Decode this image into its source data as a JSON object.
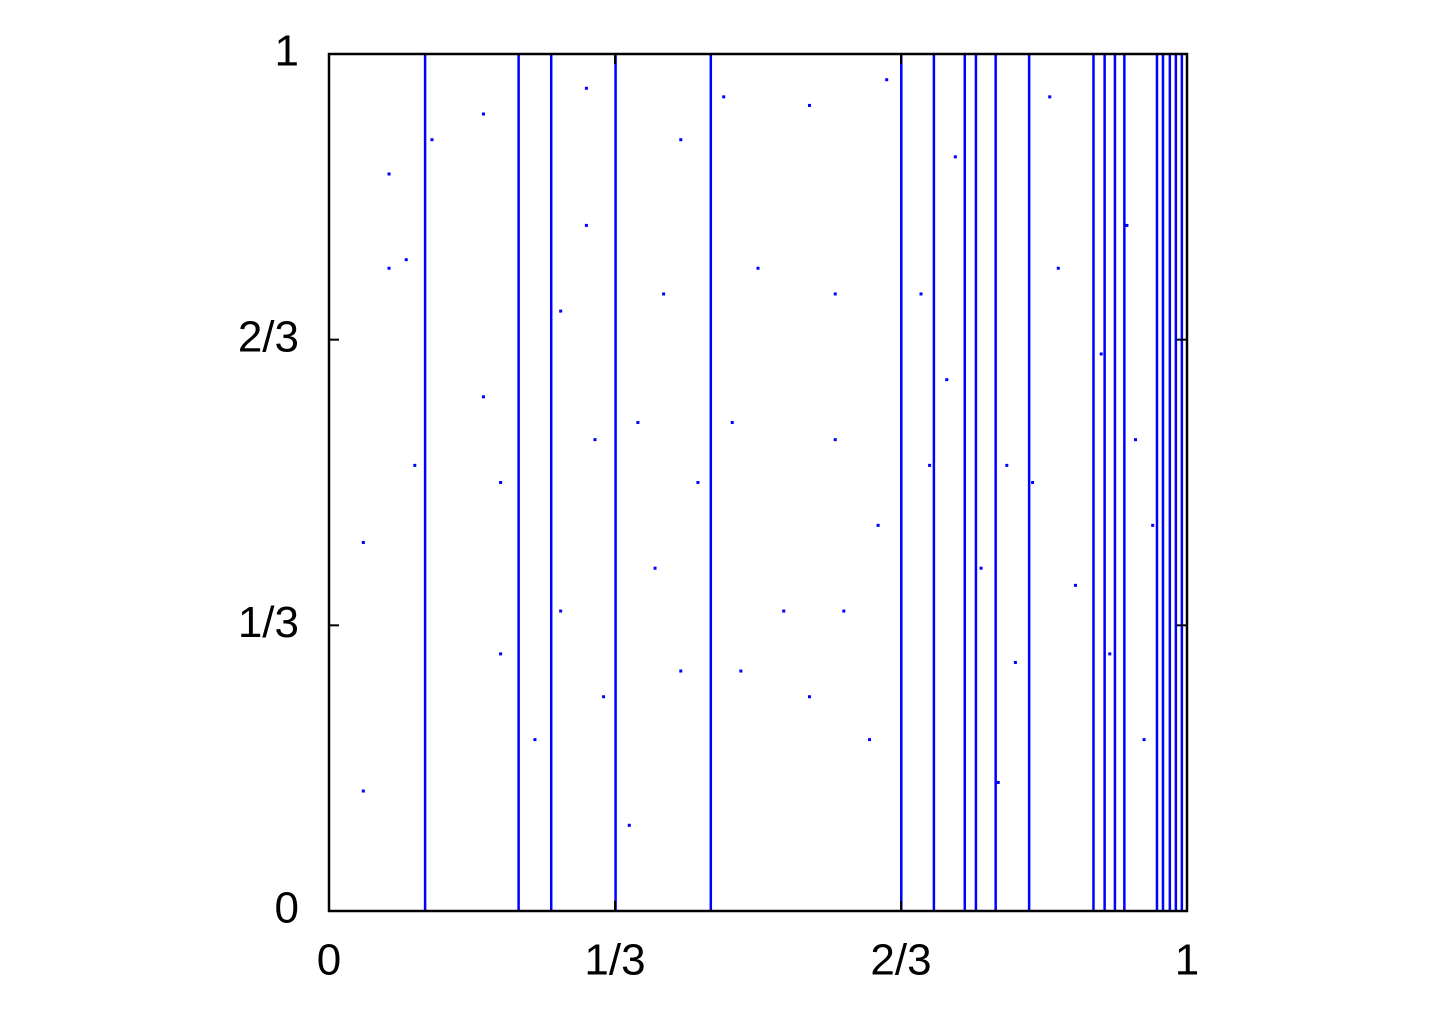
{
  "chart_data": {
    "type": "scatter",
    "color": "#0000ff",
    "xlim": [
      0,
      1
    ],
    "ylim": [
      0,
      1
    ],
    "xticks": [
      0,
      {
        "value": 0.333333,
        "label": "1/3"
      },
      {
        "value": 0.666667,
        "label": "2/3"
      },
      1
    ],
    "yticks": [
      0,
      {
        "value": 0.333333,
        "label": "1/3"
      },
      {
        "value": 0.666667,
        "label": "2/3"
      },
      1
    ],
    "vlines": [
      0.112,
      0.221,
      0.259,
      0.334,
      0.445,
      0.667,
      0.705,
      0.741,
      0.754,
      0.777,
      0.816,
      0.891,
      0.904,
      0.916,
      0.927,
      0.965,
      0.972,
      0.98,
      0.987,
      0.994
    ],
    "x": [
      0.04,
      0.04,
      0.07,
      0.07,
      0.09,
      0.1,
      0.12,
      0.18,
      0.18,
      0.2,
      0.2,
      0.24,
      0.27,
      0.27,
      0.3,
      0.3,
      0.31,
      0.32,
      0.35,
      0.36,
      0.38,
      0.39,
      0.41,
      0.41,
      0.43,
      0.46,
      0.47,
      0.48,
      0.5,
      0.53,
      0.56,
      0.56,
      0.59,
      0.59,
      0.6,
      0.63,
      0.64,
      0.65,
      0.69,
      0.7,
      0.72,
      0.73,
      0.76,
      0.78,
      0.79,
      0.8,
      0.82,
      0.84,
      0.85,
      0.87,
      0.9,
      0.91,
      0.93,
      0.94,
      0.95,
      0.96
    ],
    "y": [
      0.43,
      0.14,
      0.86,
      0.75,
      0.76,
      0.52,
      0.9,
      0.93,
      0.6,
      0.5,
      0.3,
      0.2,
      0.35,
      0.7,
      0.96,
      0.8,
      0.55,
      0.25,
      0.1,
      0.57,
      0.4,
      0.72,
      0.9,
      0.28,
      0.5,
      0.95,
      0.57,
      0.28,
      0.75,
      0.35,
      0.94,
      0.25,
      0.55,
      0.72,
      0.35,
      0.2,
      0.45,
      0.97,
      0.72,
      0.52,
      0.62,
      0.88,
      0.4,
      0.15,
      0.52,
      0.29,
      0.5,
      0.95,
      0.75,
      0.38,
      0.65,
      0.3,
      0.8,
      0.55,
      0.2,
      0.45
    ]
  }
}
